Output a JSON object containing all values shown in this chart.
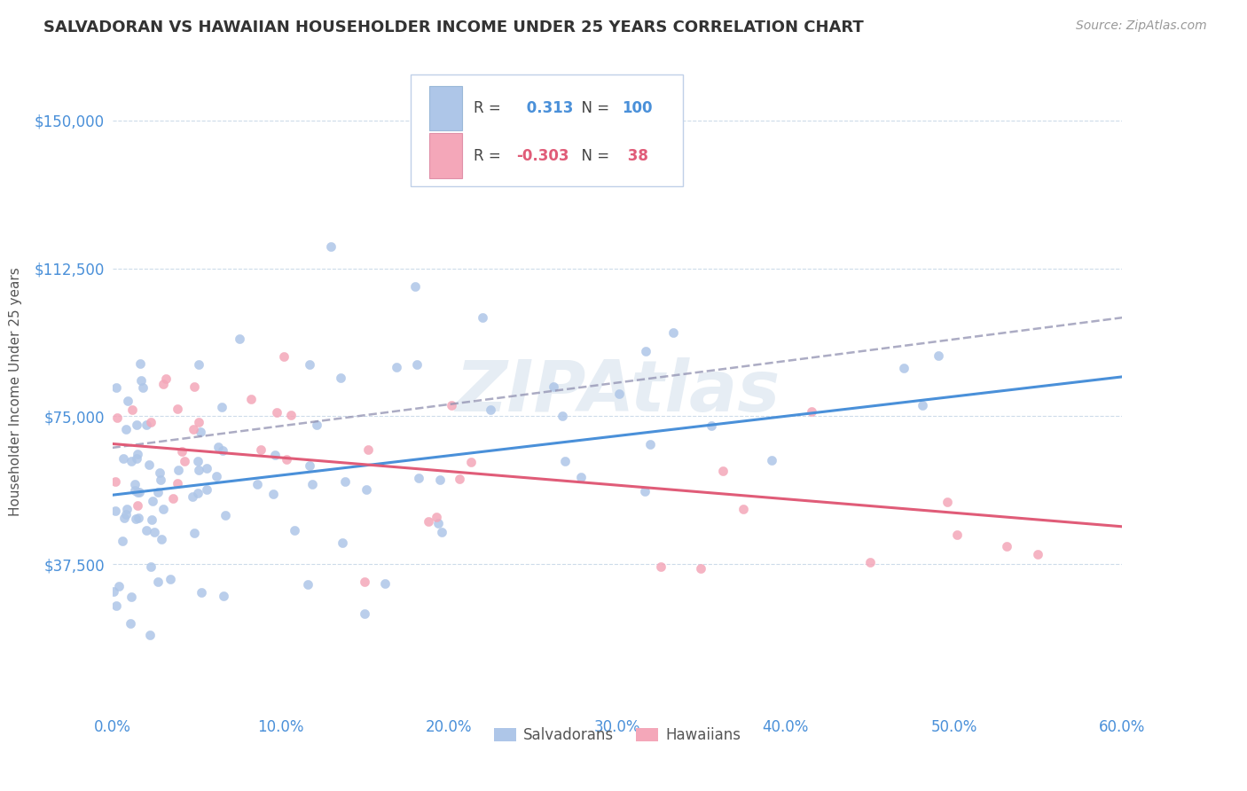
{
  "title": "SALVADORAN VS HAWAIIAN HOUSEHOLDER INCOME UNDER 25 YEARS CORRELATION CHART",
  "source": "Source: ZipAtlas.com",
  "ylabel": "Householder Income Under 25 years",
  "xlabel_ticks": [
    "0.0%",
    "10.0%",
    "20.0%",
    "30.0%",
    "40.0%",
    "50.0%",
    "60.0%"
  ],
  "xlabel_vals": [
    0.0,
    10.0,
    20.0,
    30.0,
    40.0,
    50.0,
    60.0
  ],
  "yticks_vals": [
    0,
    37500,
    75000,
    112500,
    150000
  ],
  "yticks_labels": [
    "",
    "$37,500",
    "$75,000",
    "$112,500",
    "$150,000"
  ],
  "xlim": [
    0.0,
    60.0
  ],
  "ylim": [
    0,
    162500
  ],
  "salvadoran_color": "#aec6e8",
  "hawaiian_color": "#f4a7b9",
  "trend_blue_color": "#4a90d9",
  "trend_pink_color": "#e05c78",
  "trend_gray_color": "#9090b0",
  "bg_color": "#ffffff",
  "grid_color": "#c8d8e8",
  "axis_label_color": "#4a90d9",
  "watermark": "ZIPAtlas",
  "R_salvadoran": 0.313,
  "N_salvadoran": 100,
  "R_hawaiian": -0.303,
  "N_hawaiian": 38,
  "sal_trend_x0": 0,
  "sal_trend_y0": 55000,
  "sal_trend_x1": 60,
  "sal_trend_y1": 85000,
  "haw_trend_x0": 0,
  "haw_trend_y0": 68000,
  "haw_trend_x1": 60,
  "haw_trend_y1": 47000,
  "gray_trend_x0": 0,
  "gray_trend_y0": 67000,
  "gray_trend_x1": 60,
  "gray_trend_y1": 100000
}
